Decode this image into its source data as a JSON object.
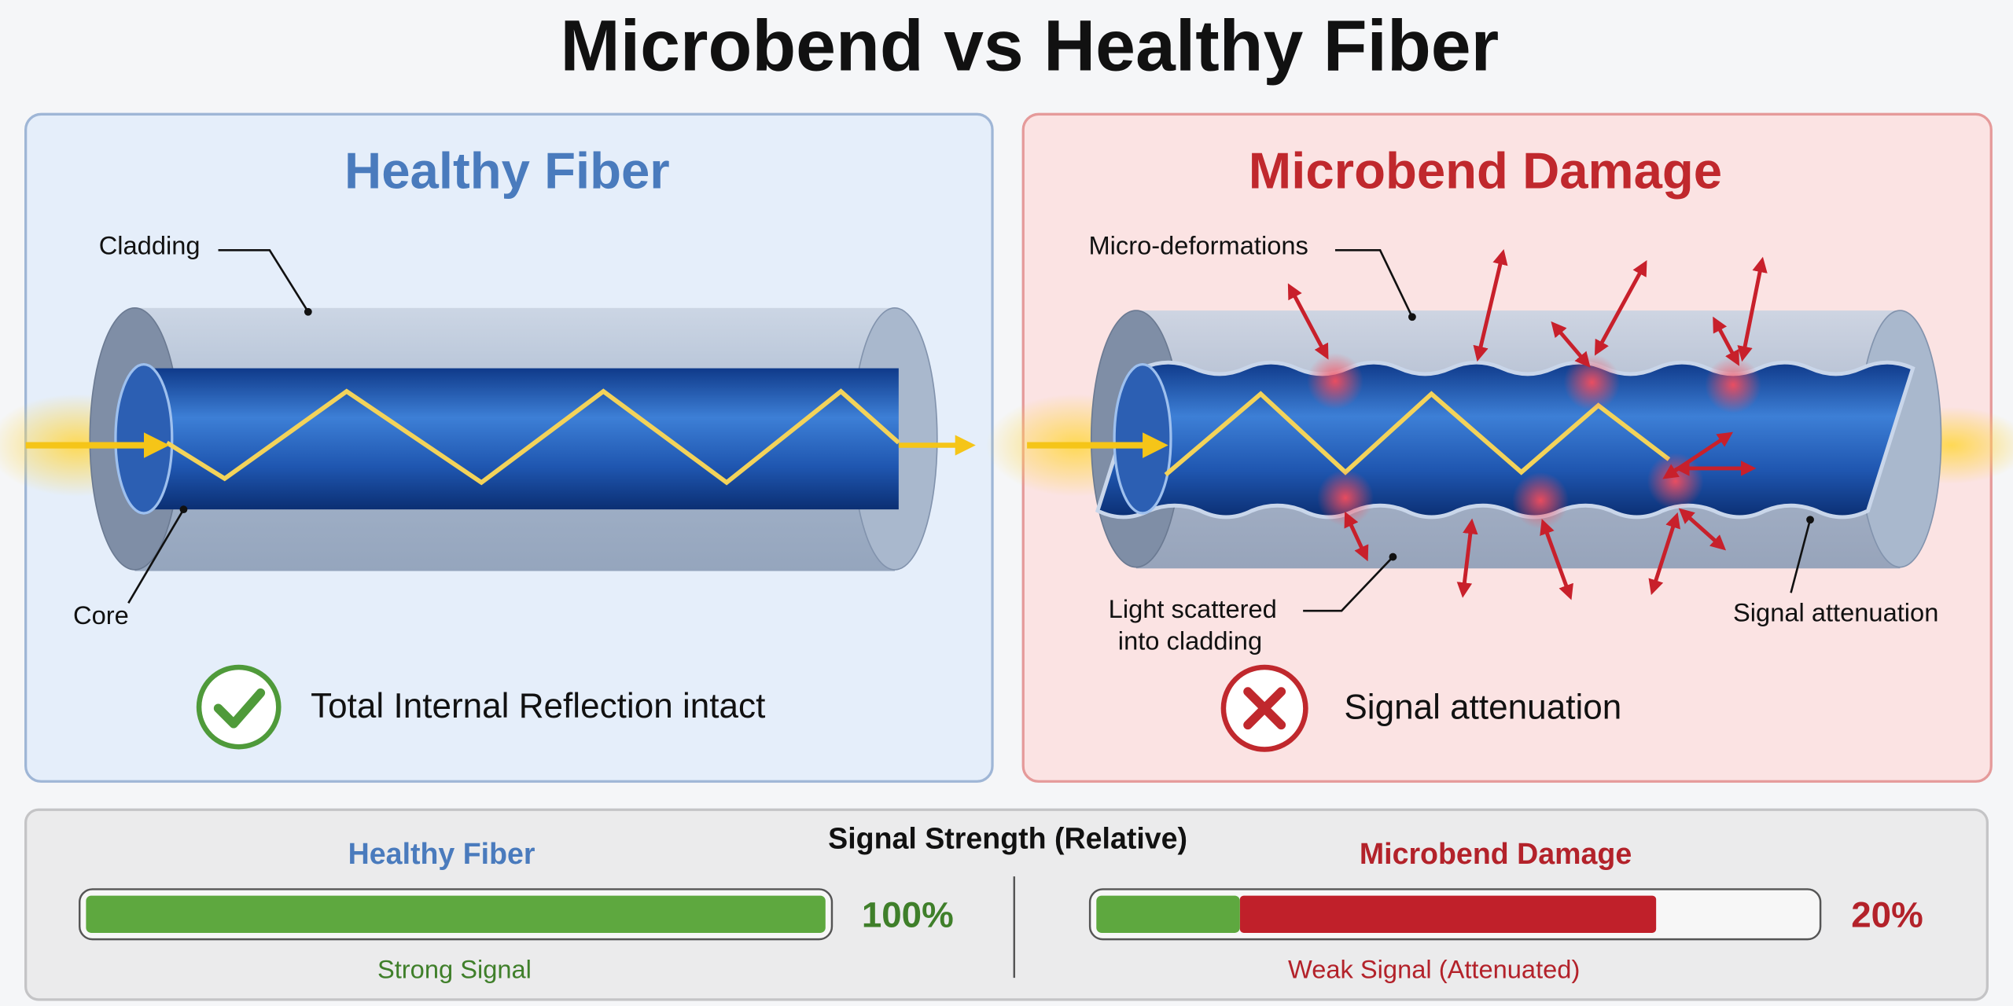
{
  "title": "Microbend vs Healthy Fiber",
  "panels": [
    {
      "title": "Healthy Fiber",
      "labels": [
        "Cladding",
        "Core"
      ],
      "status": "Total Internal Reflection intact"
    },
    {
      "title": "Microbend Damage",
      "labels": [
        "Micro-deformations",
        [
          "Light scattered",
          "into cladding"
        ],
        "Signal attenuation"
      ],
      "status": "Signal attenuation"
    }
  ],
  "signal": {
    "title": "Signal Strength (Relative)",
    "xlim": [
      0,
      100
    ],
    "bars": [
      {
        "name": "Healthy Fiber",
        "value": 100,
        "value_label": "100%",
        "caption": "Strong Signal",
        "color": "#5ea83f"
      },
      {
        "name": "Microbend Damage",
        "value": 20,
        "value_label": "20%",
        "caption": "Weak Signal (Attenuated)",
        "color": "#5ea83f"
      }
    ]
  }
}
